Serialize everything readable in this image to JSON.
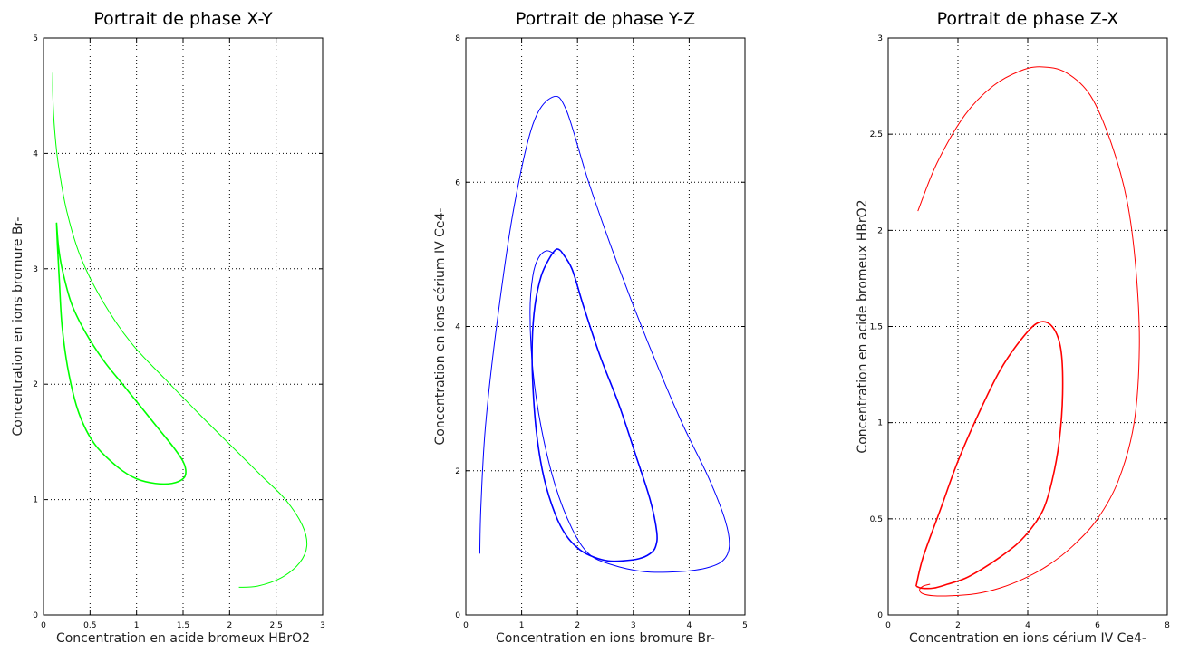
{
  "chart_data": [
    {
      "type": "line",
      "title": "Portrait de phase X-Y",
      "xlabel": "Concentration en acide bromeux HBrO2",
      "ylabel": "Concentration en ions bromure Br-",
      "xlim": [
        0,
        3
      ],
      "ylim": [
        0,
        5
      ],
      "xticks": [
        0,
        0.5,
        1,
        1.5,
        2,
        2.5,
        3
      ],
      "yticks": [
        0,
        1,
        2,
        3,
        4,
        5
      ],
      "xtick_labels": [
        "0",
        "0.5",
        "1",
        "1.5",
        "2",
        "2.5",
        "3"
      ],
      "ytick_labels": [
        "0",
        "1",
        "2",
        "3",
        "4",
        "5"
      ],
      "grid": true,
      "color": "#00ff00",
      "series": [
        {
          "x": [
            2.1,
            2.3,
            2.55,
            2.75,
            2.83,
            2.78,
            2.6,
            2.35,
            2.1,
            1.7,
            1.3,
            0.95,
            0.65,
            0.4,
            0.25,
            0.16,
            0.12,
            0.1,
            0.1
          ],
          "y": [
            0.24,
            0.25,
            0.32,
            0.45,
            0.6,
            0.78,
            1.0,
            1.2,
            1.4,
            1.72,
            2.05,
            2.35,
            2.7,
            3.1,
            3.5,
            3.9,
            4.2,
            4.5,
            4.7
          ]
        },
        {
          "x": [
            0.14,
            0.16,
            0.2,
            0.3,
            0.45,
            0.65,
            0.85,
            1.05,
            1.25,
            1.4,
            1.5,
            1.53,
            1.5,
            1.38,
            1.2,
            1.0,
            0.8,
            0.55,
            0.38,
            0.27,
            0.2,
            0.17,
            0.15,
            0.14
          ],
          "y": [
            3.4,
            3.2,
            3.0,
            2.7,
            2.45,
            2.2,
            2.0,
            1.8,
            1.6,
            1.45,
            1.33,
            1.24,
            1.18,
            1.14,
            1.14,
            1.18,
            1.28,
            1.48,
            1.75,
            2.1,
            2.5,
            2.9,
            3.2,
            3.4
          ]
        }
      ]
    },
    {
      "type": "line",
      "title": "Portrait de phase Y-Z",
      "xlabel": "Concentration en ions bromure Br-",
      "ylabel": "Concentration en ions cérium IV Ce4-",
      "xlim": [
        0,
        5
      ],
      "ylim": [
        0,
        8
      ],
      "xticks": [
        0,
        1,
        2,
        3,
        4,
        5
      ],
      "yticks": [
        0,
        2,
        4,
        6,
        8
      ],
      "xtick_labels": [
        "0",
        "1",
        "2",
        "3",
        "4",
        "5"
      ],
      "ytick_labels": [
        "0",
        "2",
        "4",
        "6",
        "8"
      ],
      "grid": true,
      "color": "#0000ff",
      "series": [
        {
          "x": [
            0.25,
            0.27,
            0.35,
            0.55,
            0.85,
            1.2,
            1.55,
            1.8,
            2.2,
            2.7,
            3.25,
            3.85,
            4.35,
            4.65,
            4.72,
            4.6,
            4.3,
            3.8,
            3.2,
            2.6,
            2.2,
            1.9,
            1.6,
            1.35,
            1.2,
            1.15,
            1.2,
            1.3,
            1.45,
            1.6
          ],
          "y": [
            0.85,
            1.5,
            2.6,
            4.0,
            5.6,
            6.8,
            7.18,
            7.0,
            6.0,
            4.9,
            3.8,
            2.7,
            1.9,
            1.3,
            0.95,
            0.75,
            0.65,
            0.6,
            0.6,
            0.7,
            0.85,
            1.2,
            1.8,
            2.6,
            3.4,
            4.2,
            4.7,
            4.95,
            5.05,
            5.0
          ]
        },
        {
          "x": [
            1.7,
            1.9,
            2.1,
            2.4,
            2.75,
            3.05,
            3.3,
            3.42,
            3.4,
            3.3,
            3.1,
            2.8,
            2.55,
            2.3,
            2.05,
            1.8,
            1.6,
            1.4,
            1.27,
            1.2,
            1.19,
            1.24,
            1.35,
            1.5,
            1.62,
            1.7
          ],
          "y": [
            5.05,
            4.8,
            4.3,
            3.6,
            2.9,
            2.2,
            1.6,
            1.15,
            0.95,
            0.85,
            0.78,
            0.75,
            0.75,
            0.8,
            0.9,
            1.1,
            1.4,
            1.9,
            2.5,
            3.2,
            3.8,
            4.3,
            4.7,
            4.95,
            5.07,
            5.05
          ]
        }
      ]
    },
    {
      "type": "line",
      "title": "Portrait de phase Z-X",
      "xlabel": "Concentration en ions cérium IV Ce4-",
      "ylabel": "Concentration en acide bromeux HBrO2",
      "xlim": [
        0,
        8
      ],
      "ylim": [
        0,
        3
      ],
      "xticks": [
        0,
        2,
        4,
        6,
        8
      ],
      "yticks": [
        0,
        0.5,
        1,
        1.5,
        2,
        2.5,
        3
      ],
      "xtick_labels": [
        "0",
        "2",
        "4",
        "6",
        "8"
      ],
      "ytick_labels": [
        "0",
        "0.5",
        "1",
        "1.5",
        "2",
        "2.5",
        "3"
      ],
      "grid": true,
      "color": "#ff0000",
      "series": [
        {
          "x": [
            0.85,
            1.4,
            2.2,
            3.0,
            3.8,
            4.4,
            5.1,
            5.8,
            6.4,
            6.85,
            7.1,
            7.2,
            7.05,
            6.6,
            6.0,
            5.3,
            4.6,
            3.9,
            3.2,
            2.5,
            1.8,
            1.3,
            1.0,
            0.9,
            1.0,
            1.2
          ],
          "y": [
            2.1,
            2.35,
            2.6,
            2.75,
            2.83,
            2.85,
            2.82,
            2.7,
            2.45,
            2.15,
            1.8,
            1.4,
            1.0,
            0.7,
            0.5,
            0.36,
            0.26,
            0.19,
            0.14,
            0.11,
            0.1,
            0.1,
            0.11,
            0.13,
            0.15,
            0.16
          ]
        },
        {
          "x": [
            0.8,
            1.0,
            1.5,
            2.0,
            2.6,
            3.2,
            3.8,
            4.3,
            4.7,
            4.95,
            5.0,
            4.9,
            4.7,
            4.45,
            4.1,
            3.7,
            3.2,
            2.7,
            2.2,
            1.7,
            1.3,
            0.95,
            0.8
          ],
          "y": [
            0.15,
            0.3,
            0.55,
            0.8,
            1.05,
            1.27,
            1.43,
            1.52,
            1.5,
            1.38,
            1.15,
            0.9,
            0.7,
            0.55,
            0.45,
            0.37,
            0.3,
            0.24,
            0.19,
            0.16,
            0.14,
            0.14,
            0.15
          ]
        }
      ]
    }
  ]
}
